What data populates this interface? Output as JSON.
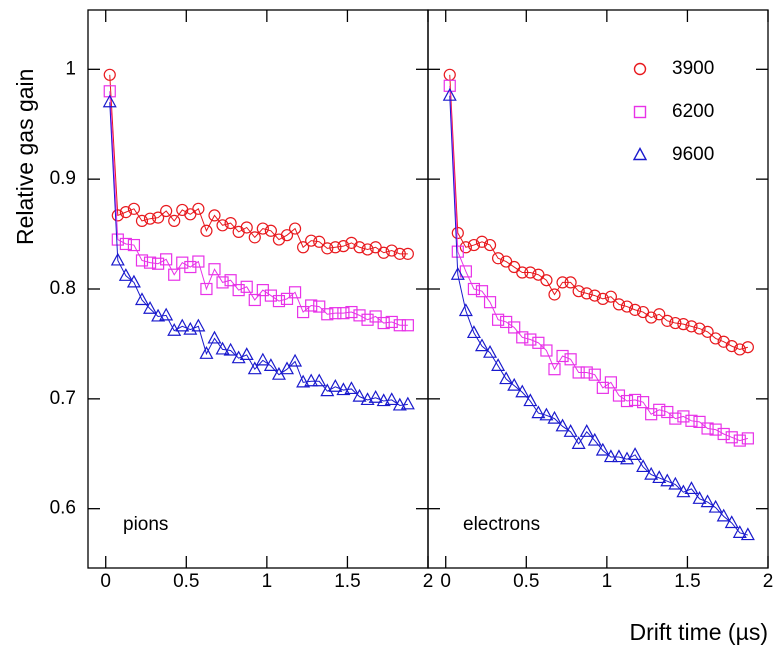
{
  "chart_data": [
    {
      "type": "line",
      "y_label": "Relative gas gain",
      "annotation": "pions",
      "x": [
        0.025,
        0.075,
        0.125,
        0.175,
        0.225,
        0.275,
        0.325,
        0.375,
        0.425,
        0.475,
        0.525,
        0.575,
        0.625,
        0.675,
        0.725,
        0.775,
        0.825,
        0.875,
        0.925,
        0.975,
        1.025,
        1.075,
        1.125,
        1.175,
        1.225,
        1.275,
        1.325,
        1.375,
        1.425,
        1.475,
        1.525,
        1.575,
        1.625,
        1.675,
        1.725,
        1.775,
        1.825,
        1.875
      ],
      "xlim": [
        -0.11,
        2.0
      ],
      "xticks": [
        0,
        0.5,
        1,
        1.5,
        2
      ],
      "ylim": [
        0.546,
        1.054
      ],
      "yticks": [
        0.6,
        0.7,
        0.8,
        0.9,
        1
      ],
      "series": [
        {
          "color": "#e8191e",
          "marker": "circle",
          "values": [
            0.995,
            0.867,
            0.87,
            0.873,
            0.862,
            0.864,
            0.865,
            0.871,
            0.862,
            0.872,
            0.868,
            0.873,
            0.853,
            0.867,
            0.858,
            0.86,
            0.852,
            0.856,
            0.847,
            0.855,
            0.853,
            0.845,
            0.849,
            0.855,
            0.838,
            0.844,
            0.843,
            0.837,
            0.838,
            0.839,
            0.842,
            0.838,
            0.836,
            0.838,
            0.833,
            0.835,
            0.832,
            0.832
          ]
        },
        {
          "color": "#e832e8",
          "marker": "square",
          "values": [
            0.98,
            0.845,
            0.841,
            0.84,
            0.826,
            0.824,
            0.823,
            0.827,
            0.813,
            0.824,
            0.82,
            0.825,
            0.8,
            0.818,
            0.806,
            0.808,
            0.799,
            0.802,
            0.79,
            0.799,
            0.794,
            0.789,
            0.791,
            0.797,
            0.779,
            0.785,
            0.784,
            0.777,
            0.778,
            0.778,
            0.779,
            0.776,
            0.772,
            0.775,
            0.769,
            0.77,
            0.767,
            0.767
          ]
        },
        {
          "color": "#1a1acd",
          "marker": "triangle",
          "values": [
            0.97,
            0.826,
            0.812,
            0.806,
            0.79,
            0.782,
            0.775,
            0.776,
            0.762,
            0.766,
            0.763,
            0.766,
            0.741,
            0.755,
            0.745,
            0.744,
            0.737,
            0.74,
            0.727,
            0.735,
            0.73,
            0.722,
            0.727,
            0.734,
            0.715,
            0.716,
            0.716,
            0.707,
            0.711,
            0.708,
            0.709,
            0.702,
            0.699,
            0.701,
            0.698,
            0.699,
            0.694,
            0.695
          ]
        }
      ]
    },
    {
      "type": "line",
      "x_label": "Drift time (µs)",
      "annotation": "electrons",
      "legend": "upper right",
      "x": [
        0.025,
        0.075,
        0.125,
        0.175,
        0.225,
        0.275,
        0.325,
        0.375,
        0.425,
        0.475,
        0.525,
        0.575,
        0.625,
        0.675,
        0.725,
        0.775,
        0.825,
        0.875,
        0.925,
        0.975,
        1.025,
        1.075,
        1.125,
        1.175,
        1.225,
        1.275,
        1.325,
        1.375,
        1.425,
        1.475,
        1.525,
        1.575,
        1.625,
        1.675,
        1.725,
        1.775,
        1.825,
        1.875
      ],
      "xlim": [
        -0.11,
        2.0
      ],
      "xticks": [
        0,
        0.5,
        1,
        1.5,
        2
      ],
      "ylim": [
        0.546,
        1.054
      ],
      "series": [
        {
          "name": "3900",
          "color": "#e8191e",
          "marker": "circle",
          "values": [
            0.995,
            0.851,
            0.838,
            0.84,
            0.843,
            0.84,
            0.828,
            0.825,
            0.82,
            0.815,
            0.815,
            0.813,
            0.808,
            0.795,
            0.806,
            0.806,
            0.798,
            0.796,
            0.794,
            0.791,
            0.793,
            0.786,
            0.784,
            0.781,
            0.779,
            0.774,
            0.777,
            0.771,
            0.769,
            0.768,
            0.766,
            0.764,
            0.761,
            0.755,
            0.752,
            0.748,
            0.745,
            0.747
          ]
        },
        {
          "name": "6200",
          "color": "#e832e8",
          "marker": "square",
          "values": [
            0.985,
            0.834,
            0.816,
            0.8,
            0.798,
            0.788,
            0.772,
            0.77,
            0.765,
            0.756,
            0.754,
            0.751,
            0.744,
            0.727,
            0.739,
            0.736,
            0.724,
            0.724,
            0.722,
            0.71,
            0.715,
            0.703,
            0.698,
            0.699,
            0.697,
            0.686,
            0.69,
            0.688,
            0.682,
            0.684,
            0.68,
            0.679,
            0.673,
            0.672,
            0.668,
            0.665,
            0.662,
            0.664
          ]
        },
        {
          "name": "9600",
          "color": "#1a1acd",
          "marker": "triangle",
          "values": [
            0.976,
            0.813,
            0.78,
            0.76,
            0.748,
            0.742,
            0.73,
            0.718,
            0.712,
            0.706,
            0.698,
            0.687,
            0.685,
            0.682,
            0.675,
            0.67,
            0.659,
            0.67,
            0.662,
            0.653,
            0.647,
            0.647,
            0.645,
            0.649,
            0.638,
            0.631,
            0.628,
            0.625,
            0.622,
            0.615,
            0.618,
            0.609,
            0.606,
            0.601,
            0.593,
            0.587,
            0.578,
            0.576
          ]
        }
      ]
    }
  ]
}
